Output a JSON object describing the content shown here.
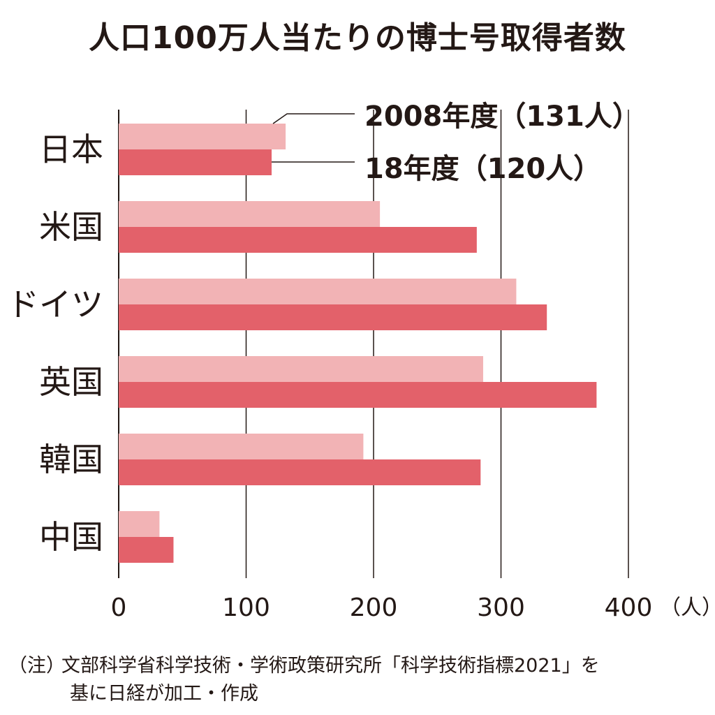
{
  "title": "人口100万人当たりの博士号取得者数",
  "chart_data": {
    "type": "bar",
    "orientation": "horizontal",
    "title": "人口100万人当たりの博士号取得者数",
    "categories": [
      "日本",
      "米国",
      "ドイツ",
      "英国",
      "韓国",
      "中国"
    ],
    "series": [
      {
        "name": "2008年度",
        "legend_label": "2008年度（131人）",
        "color": "#f2b3b5",
        "values": [
          131,
          205,
          312,
          286,
          192,
          32
        ]
      },
      {
        "name": "18年度",
        "legend_label": "18年度（120人）",
        "color": "#e3616a",
        "values": [
          120,
          281,
          336,
          375,
          284,
          43
        ]
      }
    ],
    "xlim": [
      0,
      400
    ],
    "x_ticks": [
      "0",
      "100",
      "200",
      "300",
      "400"
    ],
    "x_unit": "（人）",
    "grid": true
  },
  "note": {
    "label": "（注）",
    "line1": "文部科学省科学技術・学術政策研究所「科学技術指標2021」を",
    "line2": "基に日経が加工・作成"
  }
}
